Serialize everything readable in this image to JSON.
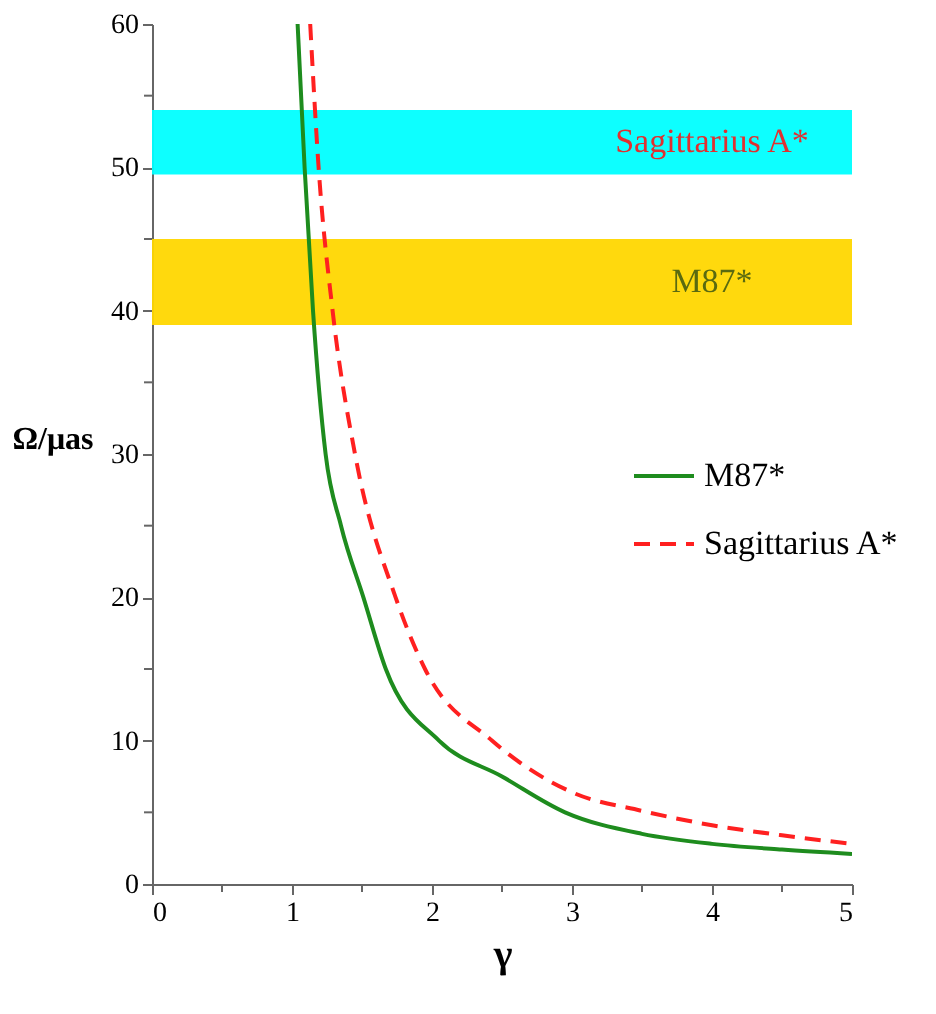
{
  "chart_data": {
    "type": "line",
    "xlabel": "γ",
    "ylabel": "Ω/μas",
    "xlim": [
      0,
      5
    ],
    "ylim": [
      0,
      60
    ],
    "xticks": [
      0,
      {
        "value": 0.5,
        "label": null
      },
      1,
      {
        "value": 1.5,
        "label": null
      },
      2,
      {
        "value": 2.5,
        "label": null
      },
      3,
      {
        "value": 3.5,
        "label": null
      },
      4,
      {
        "value": 4.5,
        "label": null
      },
      5
    ],
    "yticks": [
      0,
      {
        "value": 5,
        "label": null
      },
      10,
      {
        "value": 15,
        "label": null
      },
      20,
      {
        "value": 25,
        "label": null
      },
      30,
      {
        "value": 35,
        "label": null
      },
      40,
      {
        "value": 45,
        "label": null
      },
      50,
      {
        "value": 55,
        "label": null
      },
      60
    ],
    "grid": false,
    "legend": "right",
    "series": [
      {
        "name": "M87*",
        "color": "#1e8c1e",
        "line_style": "solid",
        "x": [
          1.04,
          1.09,
          1.15,
          1.24,
          1.35,
          1.51,
          1.67,
          2.05,
          2.5,
          2.95,
          3.5,
          4,
          4.5,
          5
        ],
        "values": [
          60,
          50,
          40,
          30,
          25,
          20,
          15,
          10,
          7.5,
          5,
          3.5,
          2.8,
          2.4,
          2.1
        ]
      },
      {
        "name": "Sagittarius A*",
        "color": "#ff2020",
        "line_style": "dashed",
        "x": [
          1.13,
          1.19,
          1.29,
          1.45,
          1.74,
          1.95,
          2.43,
          3,
          3.5,
          4,
          4.5,
          5
        ],
        "values": [
          60,
          50,
          40,
          30,
          20,
          15,
          10,
          6.4,
          5.1,
          4.1,
          3.4,
          2.8
        ]
      }
    ],
    "bands": [
      {
        "axis": "y",
        "from": 49.5,
        "to": 54,
        "label": "Sagittarius A*",
        "color": "#00ffff"
      },
      {
        "axis": "y",
        "from": 39,
        "to": 45,
        "label": "M87*",
        "color": "#ffd700"
      }
    ]
  }
}
